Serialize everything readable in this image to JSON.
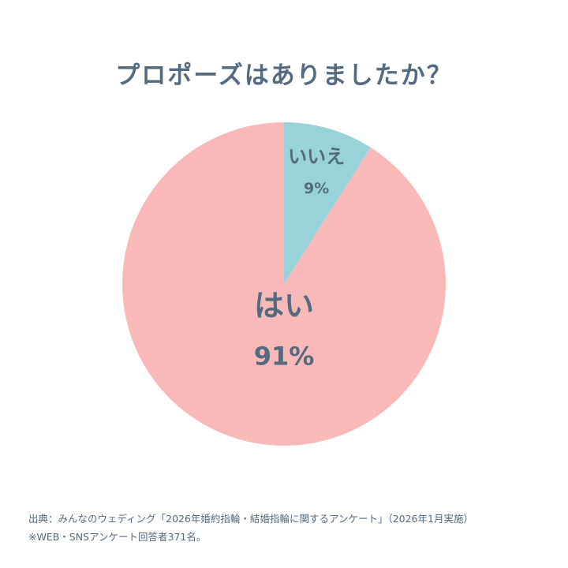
{
  "chart_data": {
    "type": "pie",
    "title": "プロポーズはありましたか？",
    "slices": [
      {
        "label": "いいえ",
        "value": 9,
        "value_label": "9%",
        "color": "#98d3da"
      },
      {
        "label": "はい",
        "value": 91,
        "value_label": "91%",
        "color": "#f9b9b9"
      }
    ],
    "start_angle_deg": 0,
    "direction": "clockwise"
  },
  "footer": {
    "source": "出典：みんなのウェディング「2026年婚約指輪・結婚指輪に関するアンケート」（2026年1月実施）",
    "note": "※WEB・SNSアンケート回答者371名。"
  },
  "colors": {
    "text": "#546a80",
    "background": "#ffffff"
  }
}
